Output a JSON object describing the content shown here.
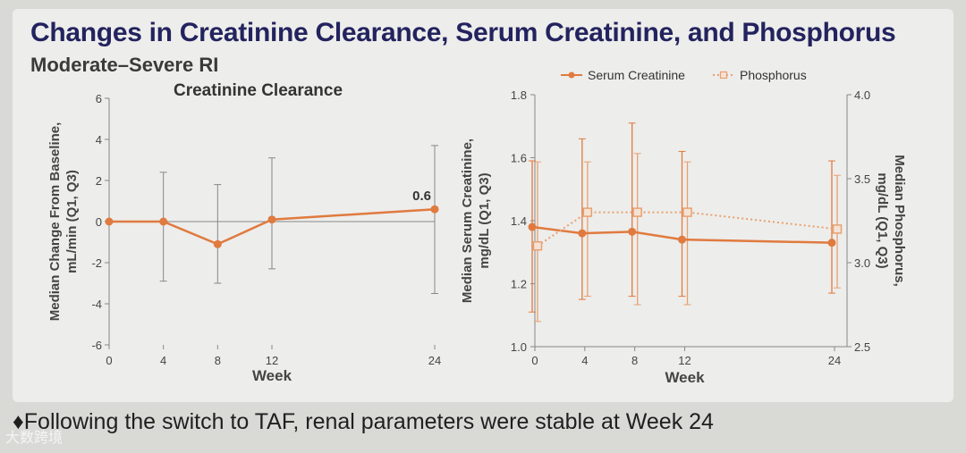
{
  "slide": {
    "title": "Changes in Creatinine Clearance, Serum Creatinine, and Phosphorus",
    "subtitle": "Moderate–Severe RI",
    "bullet": "Following the switch to TAF, renal parameters were stable at Week 24",
    "bullet_marker": "♦",
    "watermark": "大数跨境"
  },
  "colors": {
    "serum_creatinine": "#e07a3f",
    "phosphorus": "#e8a070",
    "axis": "#888888",
    "title": "#23235f"
  },
  "chart_data": [
    {
      "type": "line",
      "title": "Creatinine Clearance",
      "xlabel": "Week",
      "ylabel": "Median Change From Baseline, mL/min (Q1, Q3)",
      "x_ticks": [
        0,
        4,
        8,
        12,
        24
      ],
      "y_ticks": [
        -6,
        -4,
        -2,
        0,
        2,
        4,
        6
      ],
      "xlim": [
        0,
        24
      ],
      "ylim": [
        -6,
        6
      ],
      "grid": false,
      "zero_line": true,
      "series": [
        {
          "x": [
            0,
            4,
            8,
            12,
            24
          ],
          "y": [
            0,
            0,
            -1.1,
            0.1,
            0.6
          ],
          "q1": [
            0,
            -2.9,
            -3.0,
            -2.3,
            -3.5
          ],
          "q3": [
            0,
            2.4,
            1.8,
            3.1,
            3.7
          ],
          "color": "#e07a3f",
          "marker": "circle"
        }
      ],
      "annotations": [
        {
          "x": 24,
          "y": 0.6,
          "text": "0.6"
        }
      ]
    },
    {
      "type": "line",
      "xlabel": "Week",
      "ylabel": "Median Serum Creatinine, mg/dL (Q1, Q3)",
      "y2label": "Median Phosphorus, mg/dL (Q1, Q3)",
      "x_ticks": [
        0,
        4,
        8,
        12,
        24
      ],
      "y_ticks": [
        "1.0",
        "1.2",
        "1.4",
        "1.6",
        "1.8"
      ],
      "y2_ticks": [
        "2.5",
        "3.0",
        "3.5",
        "4.0"
      ],
      "xlim": [
        0,
        24
      ],
      "ylim": [
        1.0,
        1.8
      ],
      "y2lim": [
        2.5,
        4.0
      ],
      "grid": false,
      "legend": "top",
      "series": [
        {
          "name": "Serum Creatinine",
          "axis": "left",
          "x": [
            0,
            4,
            8,
            12,
            24
          ],
          "y": [
            1.38,
            1.36,
            1.365,
            1.34,
            1.33
          ],
          "q1": [
            1.11,
            1.15,
            1.16,
            1.16,
            1.17
          ],
          "q3": [
            1.59,
            1.66,
            1.71,
            1.62,
            1.59
          ],
          "color": "#e07a3f",
          "marker": "circle",
          "style": "solid"
        },
        {
          "name": "Phosphorus",
          "axis": "right",
          "x": [
            0,
            4,
            8,
            12,
            24
          ],
          "y": [
            3.1,
            3.3,
            3.3,
            3.3,
            3.2
          ],
          "q1": [
            2.65,
            2.8,
            2.75,
            2.75,
            2.85
          ],
          "q3": [
            3.6,
            3.6,
            3.65,
            3.6,
            3.52
          ],
          "color": "#e8a070",
          "marker": "square",
          "style": "dotted"
        }
      ]
    }
  ]
}
